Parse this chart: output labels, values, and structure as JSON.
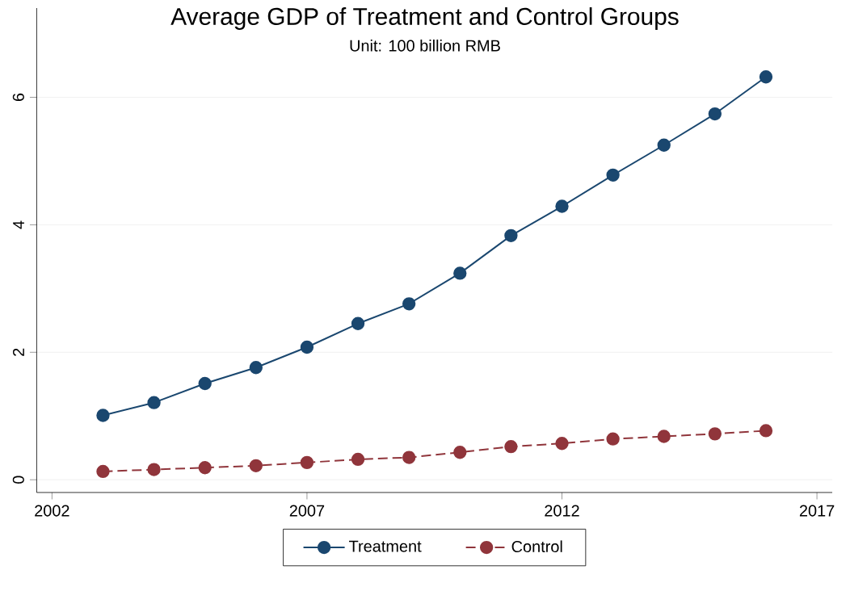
{
  "chart_data": {
    "type": "line",
    "title": "Average GDP of Treatment and Control Groups",
    "subtitle": "Unit: 100 billion RMB",
    "x": [
      2003,
      2004,
      2005,
      2006,
      2007,
      2008,
      2009,
      2010,
      2011,
      2012,
      2013,
      2014,
      2015,
      2016
    ],
    "series": [
      {
        "name": "Treatment",
        "color": "#1a476f",
        "line_style": "solid",
        "values": [
          1.01,
          1.21,
          1.51,
          1.76,
          2.08,
          2.45,
          2.76,
          3.24,
          3.83,
          4.29,
          4.78,
          5.25,
          5.74,
          6.32
        ]
      },
      {
        "name": "Control",
        "color": "#90353b",
        "line_style": "dashed",
        "values": [
          0.13,
          0.16,
          0.19,
          0.22,
          0.27,
          0.32,
          0.35,
          0.43,
          0.52,
          0.57,
          0.64,
          0.68,
          0.72,
          0.77
        ]
      }
    ],
    "xlim": [
      2001.7,
      2017.3
    ],
    "ylim": [
      -0.2,
      7.4
    ],
    "xticks": [
      2002,
      2007,
      2012,
      2017
    ],
    "yticks": [
      0,
      2,
      4,
      6
    ],
    "grid": "y",
    "legend": "bottom",
    "marker": "circle"
  }
}
